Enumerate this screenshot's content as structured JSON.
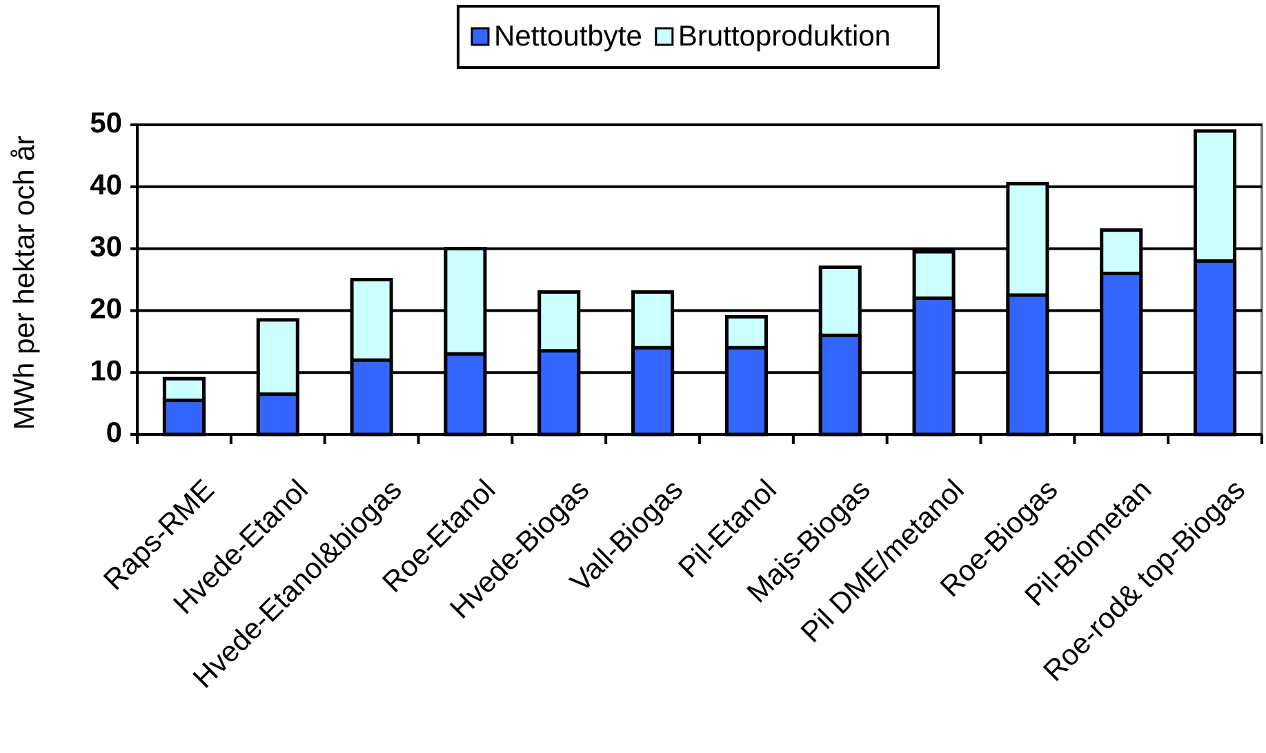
{
  "chart_data": {
    "type": "bar",
    "y_label": "MWh per hektar och år",
    "categories": [
      "Raps-RME",
      "Hvede-Etanol",
      "Hvede-Etanol&biogas",
      "Roe-Etanol",
      "Hvede-Biogas",
      "Vall-Biogas",
      "Pil-Etanol",
      "Majs-Biogas",
      "Pil DME/metanol",
      "Roe-Biogas",
      "Pil-Biometan",
      "Roe-rod& top-Biogas"
    ],
    "series": [
      {
        "name": "Bruttoproduktion",
        "color": "#ccffff",
        "values": [
          9,
          18.5,
          25,
          30,
          23,
          23,
          19,
          27,
          29.5,
          40.5,
          33,
          49
        ]
      },
      {
        "name": "Nettoutbyte",
        "color": "#3366ff",
        "values": [
          5.5,
          6.5,
          12,
          13,
          13.5,
          14,
          14,
          16,
          22,
          22.5,
          26,
          28
        ]
      }
    ],
    "legend_order": [
      1,
      0
    ],
    "ylim": [
      0,
      50
    ],
    "yticks": [
      0,
      10,
      20,
      30,
      40,
      50
    ],
    "grid": true
  }
}
